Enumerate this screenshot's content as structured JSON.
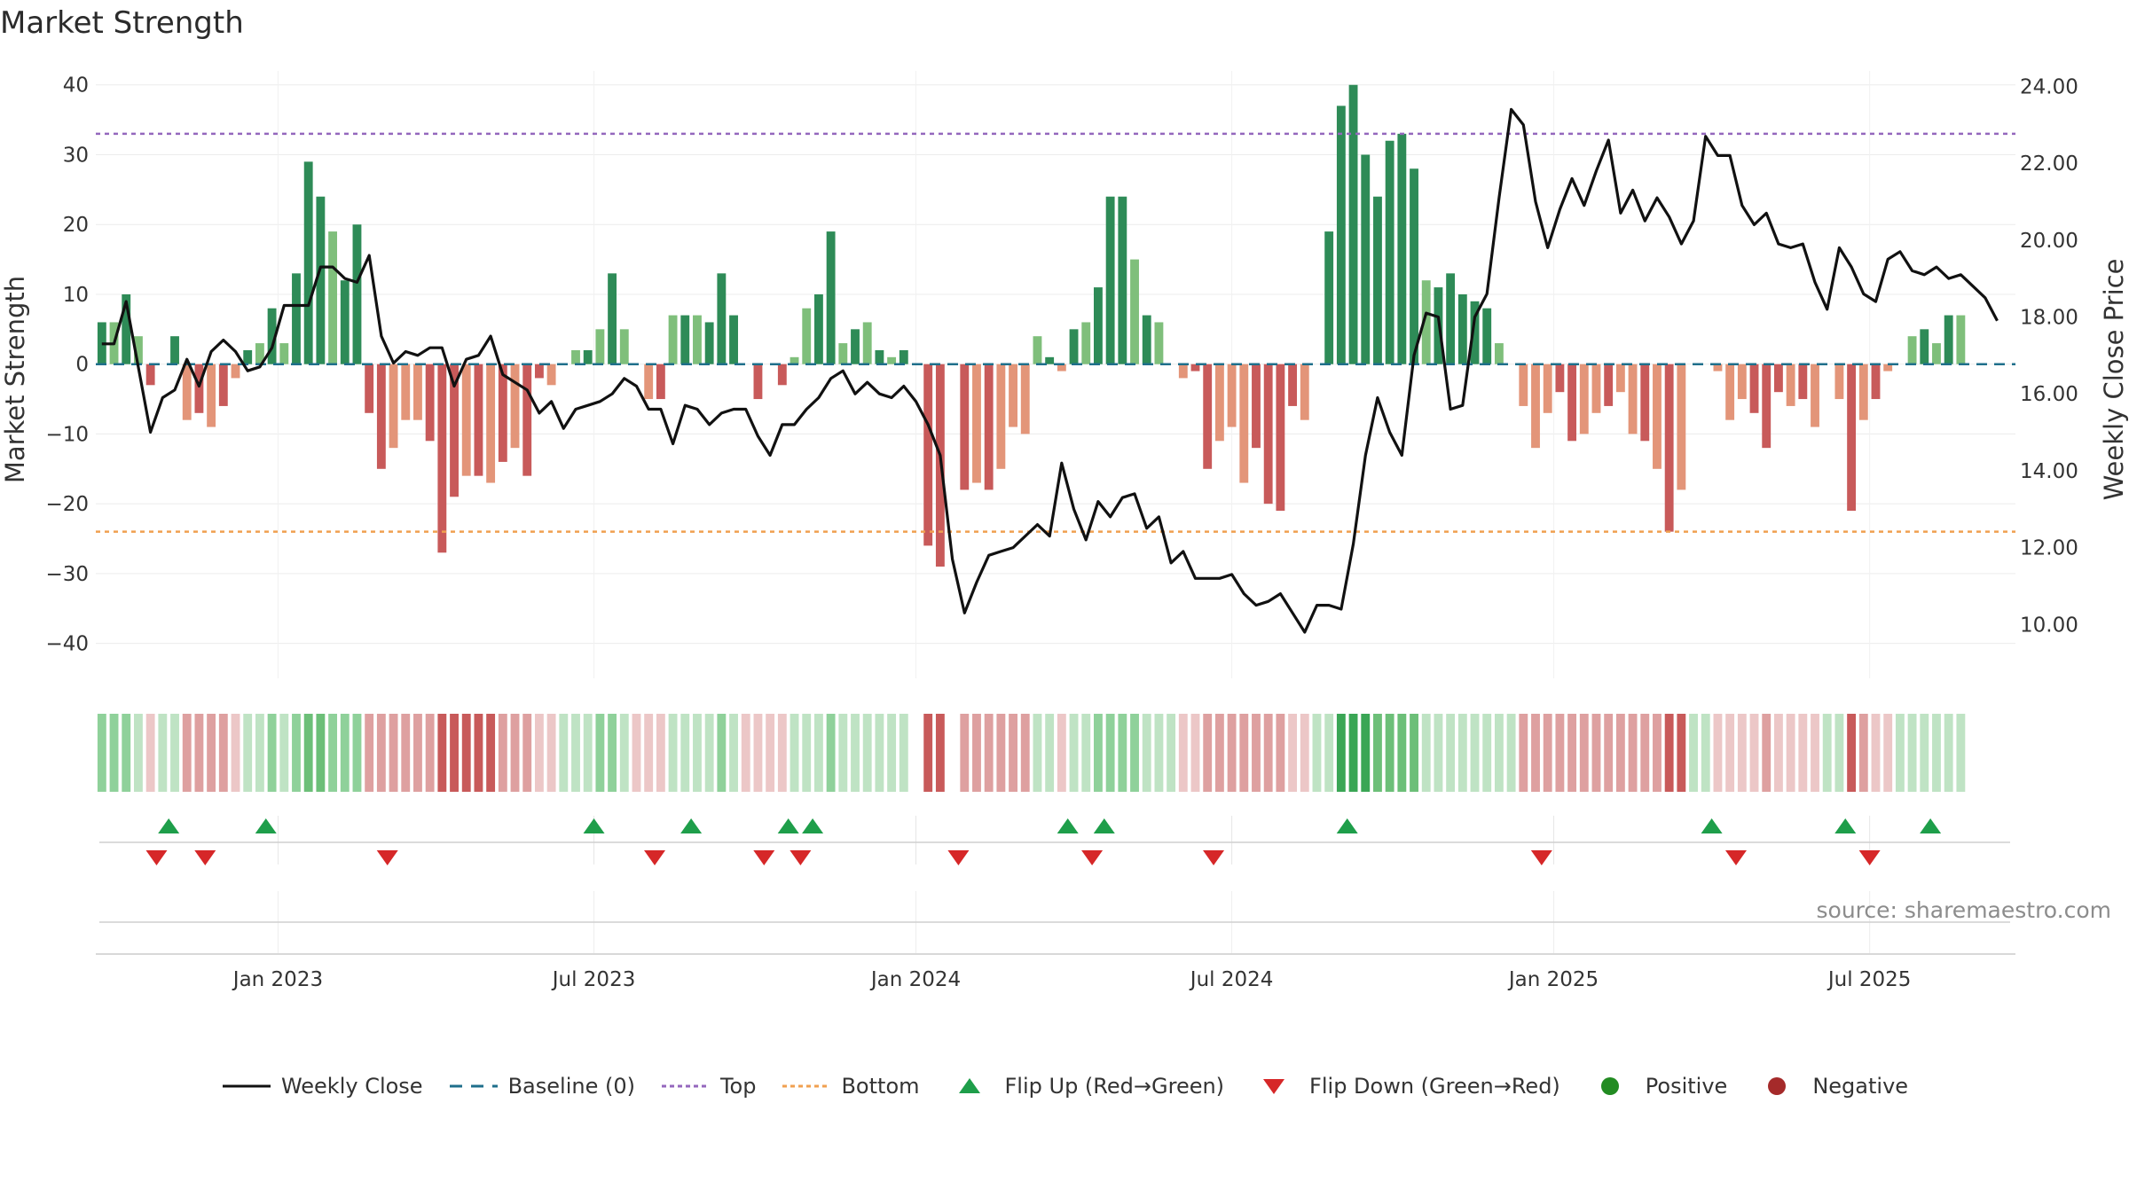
{
  "title": "Market Strength",
  "source": "source: sharemaestro.com",
  "colors": {
    "strong_green": "#2e8b57",
    "light_green": "#7fbf7b",
    "strong_red": "#c85a5a",
    "light_red": "#e39579",
    "close_line": "#111111",
    "baseline": "#1f6f8b",
    "top_line": "#9467bd",
    "bottom_line": "#f0a050",
    "flip_up": "#1e9e4a",
    "flip_down": "#d62728",
    "positive": "#228b22",
    "negative": "#a52a2a"
  },
  "legend": [
    {
      "key": "close",
      "label": "Weekly Close",
      "icon": "solid-line"
    },
    {
      "key": "baseline",
      "label": "Baseline (0)",
      "icon": "dashed-line"
    },
    {
      "key": "top",
      "label": "Top",
      "icon": "dotted-line"
    },
    {
      "key": "bottom",
      "label": "Bottom",
      "icon": "dotted-line"
    },
    {
      "key": "flip_up",
      "label": "Flip Up (Red→Green)",
      "icon": "triangle-up"
    },
    {
      "key": "flip_down",
      "label": "Flip Down (Green→Red)",
      "icon": "triangle-down"
    },
    {
      "key": "positive",
      "label": "Positive",
      "icon": "circle"
    },
    {
      "key": "negative",
      "label": "Negative",
      "icon": "circle"
    }
  ],
  "chart_data": {
    "type": "bar",
    "title": "Market Strength",
    "ylabel": "Market Strength",
    "y2label": "Weekly Close Price",
    "ylim": [
      -45,
      42
    ],
    "y2lim": [
      8.6,
      24.4
    ],
    "yticks": [
      "40",
      "30",
      "20",
      "10",
      "0",
      "−10",
      "−20",
      "−30",
      "−40"
    ],
    "ytick_values": [
      40,
      30,
      20,
      10,
      0,
      -10,
      -20,
      -30,
      -40
    ],
    "y2ticks": [
      "24.00",
      "22.00",
      "20.00",
      "18.00",
      "16.00",
      "14.00",
      "12.00",
      "10.00"
    ],
    "y2tick_values": [
      24,
      22,
      20,
      18,
      16,
      14,
      12,
      10
    ],
    "xticks": [
      {
        "label": "Jan 2023",
        "week": 14.5
      },
      {
        "label": "Jul 2023",
        "week": 40.5
      },
      {
        "label": "Jan 2024",
        "week": 67
      },
      {
        "label": "Jul 2024",
        "week": 93
      },
      {
        "label": "Jan 2025",
        "week": 119.5
      },
      {
        "label": "Jul 2025",
        "week": 145.5
      }
    ],
    "top_level": 33,
    "bottom_level": -24,
    "baseline": 0,
    "strength": [
      6,
      6,
      10,
      4,
      -3,
      0,
      4,
      -8,
      -7,
      -9,
      -6,
      -2,
      2,
      3,
      8,
      3,
      13,
      29,
      24,
      19,
      12,
      20,
      -7,
      -15,
      -12,
      -8,
      -8,
      -11,
      -27,
      -19,
      -16,
      -16,
      -17,
      -14,
      -12,
      -16,
      -2,
      -3,
      0,
      2,
      2,
      5,
      13,
      5,
      0,
      -5,
      -5,
      7,
      7,
      7,
      6,
      13,
      7,
      0,
      -5,
      0,
      -3,
      1,
      8,
      10,
      19,
      3,
      5,
      6,
      2,
      1,
      2,
      0,
      -26,
      -29,
      0,
      -18,
      -17,
      -18,
      -15,
      -9,
      -10,
      4,
      1,
      -1,
      5,
      6,
      11,
      24,
      24,
      15,
      7,
      6,
      0,
      -2,
      -1,
      -15,
      -11,
      -9,
      -17,
      -12,
      -20,
      -21,
      -6,
      -8,
      0,
      19,
      37,
      40,
      30,
      24,
      32,
      33,
      28,
      12,
      11,
      13,
      10,
      9,
      8,
      3,
      0,
      -6,
      -12,
      -7,
      -4,
      -11,
      -10,
      -7,
      -6,
      -4,
      -10,
      -11,
      -15,
      -24,
      -18,
      0,
      0,
      -1,
      -8,
      -5,
      -7,
      -12,
      -4,
      -6,
      -5,
      -9,
      0,
      -5,
      -21,
      -8,
      -5,
      -1,
      0,
      4,
      5,
      3,
      7,
      7
    ],
    "x_weeks": {
      "start": 0,
      "end": 157,
      "count": 158
    },
    "weekly_close": [
      17.3,
      17.3,
      18.4,
      16.7,
      15.0,
      15.9,
      16.1,
      16.9,
      16.2,
      17.1,
      17.4,
      17.1,
      16.6,
      16.7,
      17.2,
      18.3,
      18.3,
      18.3,
      19.3,
      19.3,
      19.0,
      18.9,
      19.6,
      17.5,
      16.8,
      17.1,
      17.0,
      17.2,
      17.2,
      16.2,
      16.9,
      17.0,
      17.5,
      16.5,
      16.3,
      16.1,
      15.5,
      15.8,
      15.1,
      15.6,
      15.7,
      15.8,
      16.0,
      16.4,
      16.2,
      15.6,
      15.6,
      14.7,
      15.7,
      15.6,
      15.2,
      15.5,
      15.6,
      15.6,
      14.9,
      14.4,
      15.2,
      15.2,
      15.6,
      15.9,
      16.4,
      16.6,
      16.0,
      16.3,
      16.0,
      15.9,
      16.2,
      15.8,
      15.2,
      14.4,
      11.7,
      10.3,
      11.1,
      11.8,
      11.9,
      12.0,
      12.3,
      12.6,
      12.3,
      14.2,
      13.0,
      12.2,
      13.2,
      12.8,
      13.3,
      13.4,
      12.5,
      12.8,
      11.6,
      11.9,
      11.2,
      11.2,
      11.2,
      11.3,
      10.8,
      10.5,
      10.6,
      10.8,
      10.3,
      9.8,
      10.5,
      10.5,
      10.4,
      12.1,
      14.4,
      15.9,
      15.0,
      14.4,
      17.0,
      18.1,
      18.0,
      15.6,
      15.7,
      18.0,
      18.6,
      21.1,
      23.4,
      23.0,
      21.0,
      19.8,
      20.8,
      21.6,
      20.9,
      21.8,
      22.6,
      20.7,
      21.3,
      20.5,
      21.1,
      20.6,
      19.9,
      20.5,
      22.7,
      22.2,
      22.2,
      20.9,
      20.4,
      20.7,
      19.9,
      19.8,
      19.9,
      18.9,
      18.2,
      19.8,
      19.3,
      18.6,
      18.4,
      19.5,
      19.7,
      19.2,
      19.1,
      19.3,
      19.0,
      19.1,
      18.8,
      18.5,
      17.9
    ]
  },
  "state_strip": {
    "strength_levels": [
      2,
      2,
      2,
      1,
      -1,
      1,
      1,
      -2,
      -2,
      -2,
      -2,
      -1,
      1,
      1,
      2,
      1,
      2,
      3,
      3,
      2,
      2,
      2,
      -2,
      -2,
      -2,
      -2,
      -2,
      -2,
      -3,
      -3,
      -3,
      -3,
      -3,
      -2,
      -2,
      -2,
      -1,
      -1,
      1,
      1,
      1,
      2,
      2,
      1,
      -1,
      -1,
      -1,
      1,
      1,
      1,
      1,
      2,
      1,
      -1,
      -1,
      -1,
      -1,
      1,
      1,
      1,
      2,
      1,
      1,
      1,
      1,
      1,
      1,
      0,
      -3,
      -3,
      0,
      -2,
      -2,
      -2,
      -2,
      -2,
      -2,
      1,
      1,
      -1,
      1,
      1,
      2,
      2,
      2,
      2,
      1,
      1,
      1,
      -1,
      -1,
      -2,
      -2,
      -2,
      -2,
      -2,
      -2,
      -2,
      -1,
      -1,
      1,
      1,
      4,
      4,
      4,
      3,
      3,
      3,
      3,
      1,
      1,
      1,
      1,
      1,
      1,
      1,
      1,
      -2,
      -2,
      -2,
      -2,
      -2,
      -2,
      -2,
      -2,
      -2,
      -2,
      -2,
      -2,
      -3,
      -3,
      1,
      1,
      -1,
      -1,
      -1,
      -1,
      -2,
      -1,
      -1,
      -1,
      -1,
      1,
      1,
      -3,
      -2,
      -1,
      -1,
      1,
      1,
      1,
      1,
      1,
      1
    ]
  },
  "flip_up_weeks": [
    5.5,
    13.5,
    40.5,
    48.5,
    56.5,
    58.5,
    79.5,
    82.5,
    102.5,
    132.5,
    143.5,
    150.5
  ],
  "flip_down_weeks": [
    4.5,
    8.5,
    23.5,
    45.5,
    54.5,
    57.5,
    70.5,
    81.5,
    91.5,
    118.5,
    134.5,
    145.5
  ]
}
